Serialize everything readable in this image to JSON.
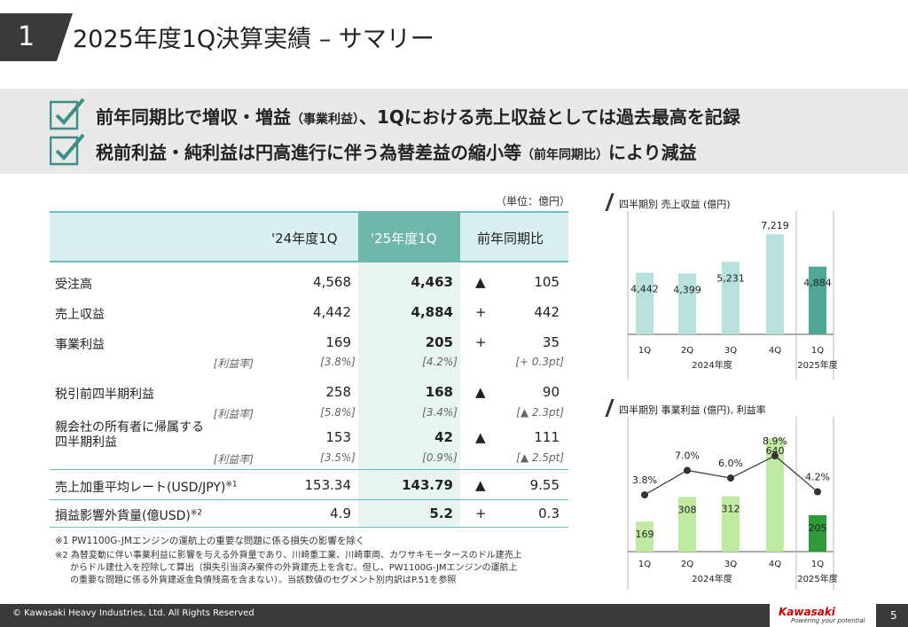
{
  "header": {
    "section_number": "1",
    "title": "2025年度1Q決算実績 – サマリー"
  },
  "summary": {
    "line1_part1": "前年同期比で増収・増益",
    "line1_small": "（事業利益）",
    "line1_part2": "、1Qにおける売上収益としては過去最高を記録",
    "line2_part1": "税前利益・純利益は円高進行に伴う為替差益の縮小等",
    "line2_small": "（前年同期比）",
    "line2_part2": "により減益"
  },
  "table": {
    "unit": "（単位：億円）",
    "headers": [
      "'24年度1Q",
      "'25年度1Q",
      "前年同期比"
    ],
    "rows": [
      {
        "label": "受注高",
        "v24": "4,568",
        "v25": "4,463",
        "sign": "▲",
        "diff": "105"
      },
      {
        "label": "売上収益",
        "v24": "4,442",
        "v25": "4,884",
        "sign": "+",
        "diff": "442"
      },
      {
        "label": "事業利益",
        "v24": "169",
        "v25": "205",
        "sign": "+",
        "diff": "35",
        "sub_label": "[利益率]",
        "sub24": "[3.8%]",
        "sub25": "[4.2%]",
        "subdiff": "[+ 0.3pt]"
      },
      {
        "label": "税引前四半期利益",
        "v24": "258",
        "v25": "168",
        "sign": "▲",
        "diff": "90",
        "sub_label": "[利益率]",
        "sub24": "[5.8%]",
        "sub25": "[3.4%]",
        "subdiff": "[▲ 2.3pt]"
      },
      {
        "label_line1": "親会社の所有者に帰属する",
        "label_line2": "四半期利益",
        "v24": "153",
        "v25": "42",
        "sign": "▲",
        "diff": "111",
        "sub_label": "[利益率]",
        "sub24": "[3.5%]",
        "sub25": "[0.9%]",
        "subdiff": "[▲ 2.5pt]"
      },
      {
        "label": "売上加重平均レート(USD/JPY)",
        "sup": "※1",
        "v24": "153.34",
        "v25": "143.79",
        "sign": "▲",
        "diff": "9.55"
      },
      {
        "label": "損益影響外貨量(億USD)",
        "sup": "※2",
        "v24": "4.9",
        "v25": "5.2",
        "sign": "+",
        "diff": "0.3"
      }
    ]
  },
  "notes": {
    "n1": "※1 PW1100G-JMエンジンの運航上の重要な問題に係る損失の影響を除く",
    "n2_l1": "※2 為替変動に伴い事業利益に影響を与える外貨量であり、川崎重工業、川崎車両、カワサキモータースのドル建売上",
    "n2_l2": "からドル建仕入を控除して算出（損失引当済み案件の外貨建売上を含む。但し、PW1100G-JMエンジンの運航上",
    "n2_l3": "の重要な問題に係る外貨建返金負債残高を含まない）。当該数値のセグメント別内訳はP.51を参照"
  },
  "chart_data": [
    {
      "type": "bar",
      "title": "四半期別 売上収益 (億円)",
      "categories": [
        "1Q",
        "2Q",
        "3Q",
        "4Q",
        "1Q"
      ],
      "groups": [
        "2024年度",
        "2025年度"
      ],
      "values": [
        4442,
        4399,
        5231,
        7219,
        4884
      ],
      "labels": [
        "4,442",
        "4,399",
        "5,231",
        "7,219",
        "4,884"
      ],
      "colors": [
        "#b7e1dc",
        "#b7e1dc",
        "#b7e1dc",
        "#b7e1dc",
        "#4fa896"
      ]
    },
    {
      "type": "bar+line",
      "title": "四半期別 事業利益 (億円), 利益率",
      "categories": [
        "1Q",
        "2Q",
        "3Q",
        "4Q",
        "1Q"
      ],
      "groups": [
        "2024年度",
        "2025年度"
      ],
      "values": [
        169,
        308,
        312,
        640,
        205
      ],
      "margin_pct": [
        3.8,
        7.0,
        6.0,
        8.9,
        4.2
      ],
      "margin_labels": [
        "3.8%",
        "7.0%",
        "6.0%",
        "8.9%",
        "4.2%"
      ],
      "colors": [
        "#bfeaa0",
        "#bfeaa0",
        "#bfeaa0",
        "#bfeaa0",
        "#2f9a3a"
      ]
    }
  ],
  "footer": {
    "copyright": "© Kawasaki Heavy Industries, Ltd. All Rights Reserved",
    "logo": "Kawasaki",
    "slogan": "Powering your potential",
    "page": "5"
  }
}
